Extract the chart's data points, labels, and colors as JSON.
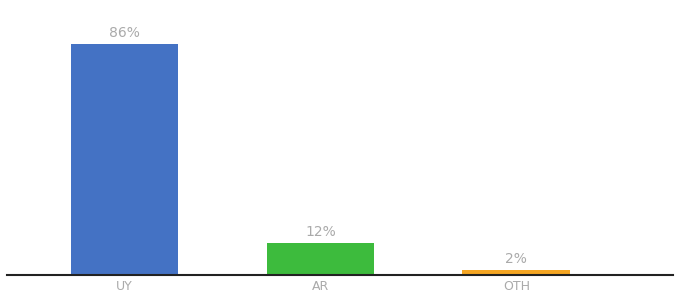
{
  "categories": [
    "UY",
    "AR",
    "OTH"
  ],
  "values": [
    86,
    12,
    2
  ],
  "labels": [
    "86%",
    "12%",
    "2%"
  ],
  "bar_colors": [
    "#4472c4",
    "#3dbb3d",
    "#f5a623"
  ],
  "background_color": "#ffffff",
  "text_color": "#aaaaaa",
  "label_fontsize": 10,
  "tick_fontsize": 9,
  "ylim": [
    0,
    100
  ],
  "figsize": [
    6.8,
    3.0
  ],
  "dpi": 100,
  "x_positions": [
    1,
    2,
    3
  ],
  "bar_width": 0.55,
  "xlim": [
    0.4,
    3.8
  ]
}
